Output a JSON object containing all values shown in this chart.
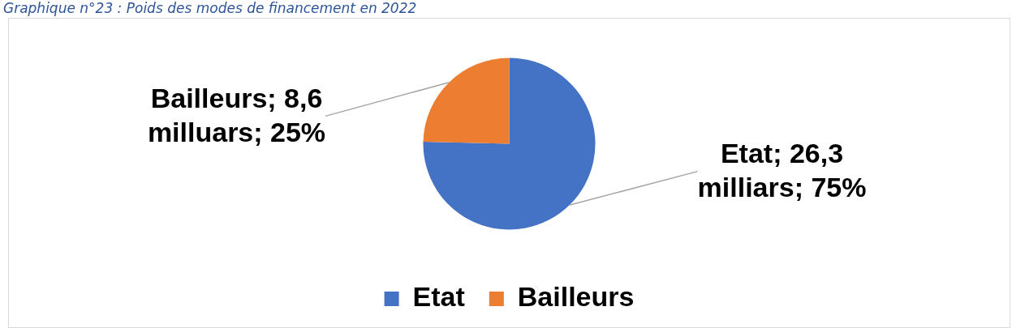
{
  "chart_data": {
    "type": "pie",
    "title": "Graphique n°23 : Poids des modes de financement en 2022",
    "categories": [
      "Etat",
      "Bailleurs"
    ],
    "values": [
      26.3,
      8.6
    ],
    "colors": [
      "#4472c4",
      "#ed7d31"
    ],
    "value_labels": [
      "Etat; 26,3 milliars; 75%",
      "Bailleurs; 8,6 milluars; 25%"
    ],
    "legend": "bottom"
  }
}
